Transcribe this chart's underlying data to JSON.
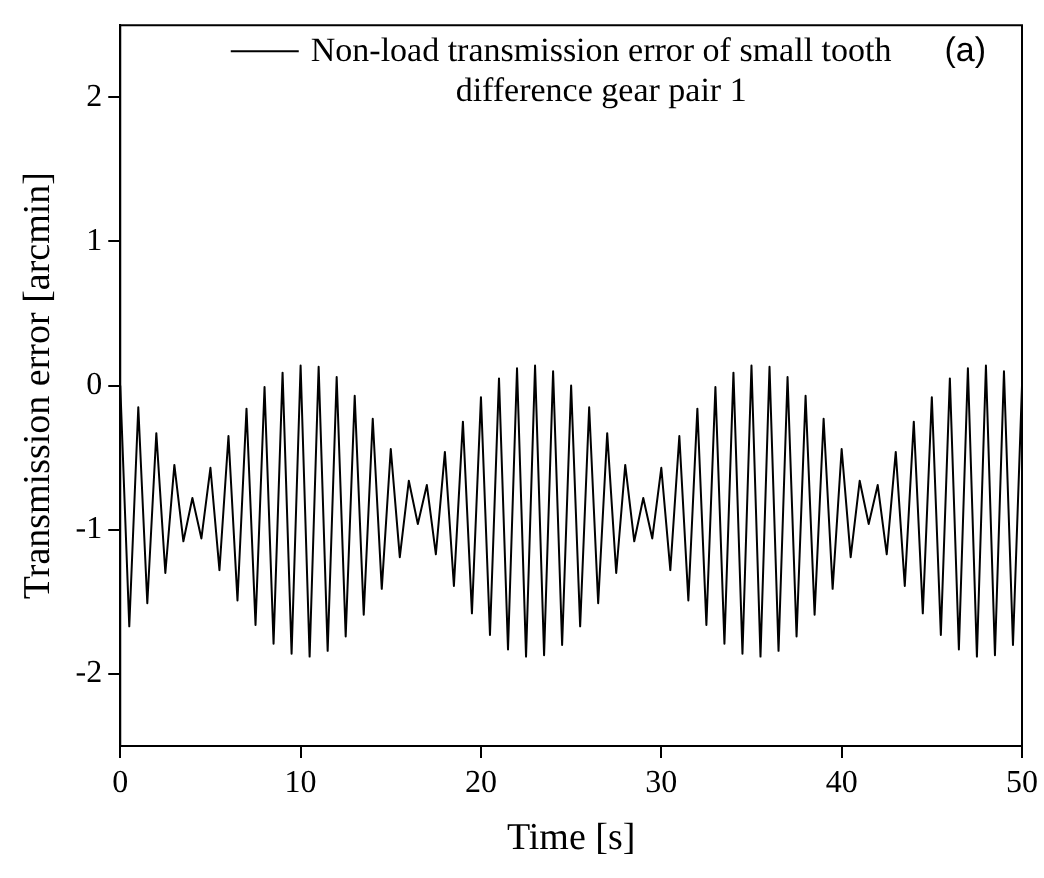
{
  "chart_data": {
    "type": "line",
    "xlabel": "Time [s]",
    "ylabel": "Transmission error [arcmin]",
    "annotations": [
      "(a)"
    ],
    "x": [
      0,
      0.5,
      1,
      1.5,
      2,
      2.5,
      3,
      3.5,
      4,
      4.5,
      5,
      5.5,
      6,
      6.5,
      7,
      7.5,
      8,
      8.5,
      9,
      9.5,
      10,
      10.5,
      11,
      11.5,
      12,
      12.5,
      13,
      13.5,
      14,
      14.5,
      15,
      15.5,
      16,
      16.5,
      17,
      17.5,
      18,
      18.5,
      19,
      19.5,
      20,
      20.5,
      21,
      21.5,
      22,
      22.5,
      23,
      23.5,
      24,
      24.5,
      25,
      25.5,
      26,
      26.5,
      27,
      27.5,
      28,
      28.5,
      29,
      29.5,
      30,
      30.5,
      31,
      31.5,
      32,
      32.5,
      33,
      33.5,
      34,
      34.5,
      35,
      35.5,
      36,
      36.5,
      37,
      37.5,
      38,
      38.5,
      39,
      39.5,
      40,
      40.5,
      41,
      41.5,
      42,
      42.5,
      43,
      43.5,
      44,
      44.5,
      45,
      45.5,
      46,
      46.5,
      47,
      47.5,
      48,
      48.5,
      49,
      49.5,
      50
    ],
    "series": [
      {
        "name": "Non-load transmission error of small tooth difference gear pair 1",
        "color": "#000000",
        "values": [
          0.0,
          -1.67,
          -0.15,
          -1.51,
          -0.33,
          -1.3,
          -0.55,
          -1.08,
          -0.78,
          -1.06,
          -0.57,
          -1.28,
          -0.35,
          -1.49,
          -0.16,
          -1.66,
          -0.01,
          -1.79,
          0.09,
          -1.86,
          0.14,
          -1.88,
          0.13,
          -1.84,
          0.06,
          -1.74,
          -0.07,
          -1.59,
          -0.23,
          -1.41,
          -0.44,
          -1.19,
          -0.66,
          -0.96,
          -0.69,
          -1.17,
          -0.46,
          -1.39,
          -0.25,
          -1.58,
          -0.08,
          -1.73,
          0.05,
          -1.83,
          0.12,
          -1.88,
          0.14,
          -1.87,
          0.1,
          -1.8,
          0.0,
          -1.67,
          -0.15,
          -1.51,
          -0.33,
          -1.3,
          -0.55,
          -1.08,
          -0.78,
          -1.06,
          -0.57,
          -1.28,
          -0.35,
          -1.49,
          -0.16,
          -1.66,
          -0.01,
          -1.79,
          0.09,
          -1.86,
          0.14,
          -1.88,
          0.13,
          -1.84,
          0.06,
          -1.74,
          -0.07,
          -1.59,
          -0.23,
          -1.41,
          -0.44,
          -1.19,
          -0.66,
          -0.96,
          -0.69,
          -1.17,
          -0.46,
          -1.39,
          -0.25,
          -1.58,
          -0.08,
          -1.73,
          0.05,
          -1.83,
          0.12,
          -1.88,
          0.14,
          -1.87,
          0.1,
          -1.8,
          0.0
        ]
      }
    ],
    "xlim": [
      0,
      50
    ],
    "xticks": [
      0,
      10,
      20,
      30,
      40,
      50
    ],
    "ylim": [
      -2.5,
      2.5
    ],
    "yticks": [
      -2,
      -1,
      0,
      1,
      2
    ],
    "grid": false,
    "legend": "top",
    "marker": "none",
    "line_style": "solid"
  }
}
